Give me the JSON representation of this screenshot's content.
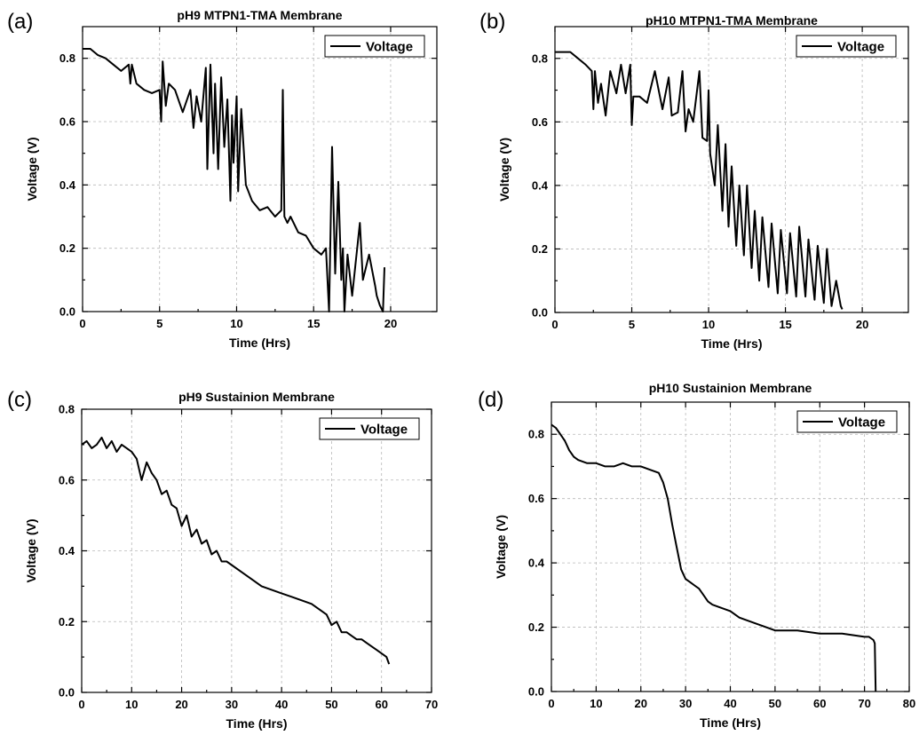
{
  "chart_data": [
    {
      "type": "line",
      "panel": "(a)",
      "title": "pH9 MTPN1-TMA Membrane",
      "xlabel": "Time (Hrs)",
      "ylabel": "Voltage (V)",
      "xlim": [
        0,
        23
      ],
      "ylim": [
        0,
        0.9
      ],
      "xticks": [
        0,
        5,
        10,
        15,
        20
      ],
      "yticks": [
        0.0,
        0.2,
        0.4,
        0.6,
        0.8
      ],
      "legend_position": "top-right",
      "grid": true,
      "series": [
        {
          "name": "Voltage",
          "x": [
            0,
            0.5,
            1,
            1.5,
            2,
            2.5,
            3,
            3.1,
            3.2,
            3.5,
            4,
            4.5,
            5,
            5.1,
            5.2,
            5.4,
            5.6,
            6,
            6.5,
            7,
            7.2,
            7.4,
            7.7,
            8,
            8.1,
            8.3,
            8.5,
            8.6,
            8.8,
            9,
            9.2,
            9.4,
            9.6,
            9.7,
            9.8,
            10,
            10.1,
            10.3,
            10.6,
            11,
            11.5,
            12,
            12.5,
            12.9,
            13,
            13.1,
            13.3,
            13.5,
            14,
            14.5,
            15,
            15.5,
            15.8,
            16,
            16.2,
            16.4,
            16.6,
            16.8,
            16.9,
            17.0,
            17.2,
            17.5,
            18,
            18.2,
            18.6,
            19,
            19.1,
            19.3,
            19.5,
            19.6
          ],
          "values": [
            0.83,
            0.83,
            0.81,
            0.8,
            0.78,
            0.76,
            0.78,
            0.72,
            0.78,
            0.72,
            0.7,
            0.69,
            0.7,
            0.6,
            0.79,
            0.65,
            0.72,
            0.7,
            0.63,
            0.7,
            0.58,
            0.68,
            0.6,
            0.77,
            0.45,
            0.78,
            0.5,
            0.72,
            0.45,
            0.74,
            0.52,
            0.67,
            0.35,
            0.62,
            0.47,
            0.68,
            0.38,
            0.64,
            0.4,
            0.35,
            0.32,
            0.33,
            0.3,
            0.32,
            0.7,
            0.3,
            0.28,
            0.3,
            0.25,
            0.24,
            0.2,
            0.18,
            0.2,
            0.0,
            0.52,
            0.12,
            0.41,
            0.1,
            0.2,
            0.0,
            0.18,
            0.05,
            0.28,
            0.1,
            0.18,
            0.08,
            0.05,
            0.02,
            0.0,
            0.14
          ]
        }
      ]
    },
    {
      "type": "line",
      "panel": "(b)",
      "title": "pH10 MTPN1-TMA Membrane",
      "xlabel": "Time (Hrs)",
      "ylabel": "Voltage (V)",
      "xlim": [
        0,
        23
      ],
      "ylim": [
        0,
        0.9
      ],
      "xticks": [
        0,
        5,
        10,
        15,
        20
      ],
      "yticks": [
        0.0,
        0.2,
        0.4,
        0.6,
        0.8
      ],
      "legend_position": "top-right",
      "grid": true,
      "series": [
        {
          "name": "Voltage",
          "x": [
            0,
            0.5,
            1,
            1.5,
            2,
            2.4,
            2.5,
            2.6,
            2.8,
            3,
            3.3,
            3.6,
            4,
            4.3,
            4.6,
            4.9,
            5,
            5.1,
            5.5,
            6,
            6.5,
            7,
            7.4,
            7.6,
            8,
            8.3,
            8.5,
            8.7,
            9,
            9.4,
            9.6,
            9.9,
            10.0,
            10.1,
            10.4,
            10.6,
            10.9,
            11.1,
            11.3,
            11.5,
            11.8,
            12,
            12.3,
            12.5,
            12.8,
            13,
            13.3,
            13.5,
            13.9,
            14.1,
            14.5,
            14.7,
            15.1,
            15.3,
            15.7,
            15.9,
            16.3,
            16.5,
            16.9,
            17.1,
            17.5,
            17.7,
            18,
            18.3,
            18.6,
            18.7
          ],
          "values": [
            0.82,
            0.82,
            0.82,
            0.8,
            0.78,
            0.76,
            0.64,
            0.76,
            0.66,
            0.72,
            0.62,
            0.76,
            0.69,
            0.78,
            0.69,
            0.78,
            0.59,
            0.68,
            0.68,
            0.66,
            0.76,
            0.64,
            0.74,
            0.62,
            0.63,
            0.76,
            0.57,
            0.64,
            0.6,
            0.76,
            0.55,
            0.54,
            0.7,
            0.5,
            0.4,
            0.59,
            0.32,
            0.53,
            0.27,
            0.46,
            0.21,
            0.4,
            0.18,
            0.4,
            0.14,
            0.32,
            0.1,
            0.3,
            0.08,
            0.28,
            0.06,
            0.26,
            0.06,
            0.25,
            0.05,
            0.27,
            0.05,
            0.23,
            0.04,
            0.21,
            0.03,
            0.2,
            0.02,
            0.1,
            0.02,
            0.01
          ]
        }
      ]
    },
    {
      "type": "line",
      "panel": "(c)",
      "title": "pH9 Sustainion Membrane",
      "xlabel": "Time (Hrs)",
      "ylabel": "Voltage (V)",
      "xlim": [
        0,
        70
      ],
      "ylim": [
        0,
        0.8
      ],
      "xticks": [
        0,
        10,
        20,
        30,
        40,
        50,
        60,
        70
      ],
      "yticks": [
        0.0,
        0.2,
        0.4,
        0.6,
        0.8
      ],
      "legend_position": "top-right",
      "grid": true,
      "series": [
        {
          "name": "Voltage",
          "x": [
            0,
            1,
            2,
            3,
            4,
            5,
            6,
            7,
            8,
            9,
            10,
            11,
            12,
            13,
            14,
            15,
            16,
            17,
            18,
            19,
            20,
            21,
            22,
            23,
            24,
            25,
            26,
            27,
            28,
            29,
            30,
            32,
            34,
            36,
            38,
            40,
            42,
            44,
            46,
            48,
            49,
            50,
            51,
            52,
            53,
            54,
            55,
            56,
            57,
            58,
            59,
            60,
            61,
            61.5
          ],
          "values": [
            0.7,
            0.71,
            0.69,
            0.7,
            0.72,
            0.69,
            0.71,
            0.68,
            0.7,
            0.69,
            0.68,
            0.66,
            0.6,
            0.65,
            0.62,
            0.6,
            0.56,
            0.57,
            0.53,
            0.52,
            0.47,
            0.5,
            0.44,
            0.46,
            0.42,
            0.43,
            0.39,
            0.4,
            0.37,
            0.37,
            0.36,
            0.34,
            0.32,
            0.3,
            0.29,
            0.28,
            0.27,
            0.26,
            0.25,
            0.23,
            0.22,
            0.19,
            0.2,
            0.17,
            0.17,
            0.16,
            0.15,
            0.15,
            0.14,
            0.13,
            0.12,
            0.11,
            0.1,
            0.08
          ]
        }
      ]
    },
    {
      "type": "line",
      "panel": "(d)",
      "title": "pH10 Sustainion Membrane",
      "xlabel": "Time (Hrs)",
      "ylabel": "Voltage (V)",
      "xlim": [
        0,
        80
      ],
      "ylim": [
        0,
        0.9
      ],
      "xticks": [
        0,
        10,
        20,
        30,
        40,
        50,
        60,
        70,
        80
      ],
      "yticks": [
        0.0,
        0.2,
        0.4,
        0.6,
        0.8
      ],
      "legend_position": "top-right",
      "grid": true,
      "series": [
        {
          "name": "Voltage",
          "x": [
            0,
            1,
            2,
            3,
            4,
            5,
            6,
            8,
            10,
            12,
            14,
            16,
            18,
            20,
            22,
            24,
            25,
            26,
            27,
            28,
            29,
            30,
            31,
            32,
            33,
            34,
            35,
            36,
            38,
            40,
            42,
            44,
            46,
            48,
            50,
            55,
            60,
            65,
            70,
            71,
            72,
            72.3,
            72.5
          ],
          "values": [
            0.83,
            0.82,
            0.8,
            0.78,
            0.75,
            0.73,
            0.72,
            0.71,
            0.71,
            0.7,
            0.7,
            0.71,
            0.7,
            0.7,
            0.69,
            0.68,
            0.65,
            0.6,
            0.52,
            0.45,
            0.38,
            0.35,
            0.34,
            0.33,
            0.32,
            0.3,
            0.28,
            0.27,
            0.26,
            0.25,
            0.23,
            0.22,
            0.21,
            0.2,
            0.19,
            0.19,
            0.18,
            0.18,
            0.17,
            0.17,
            0.16,
            0.15,
            0.0
          ]
        }
      ]
    }
  ]
}
